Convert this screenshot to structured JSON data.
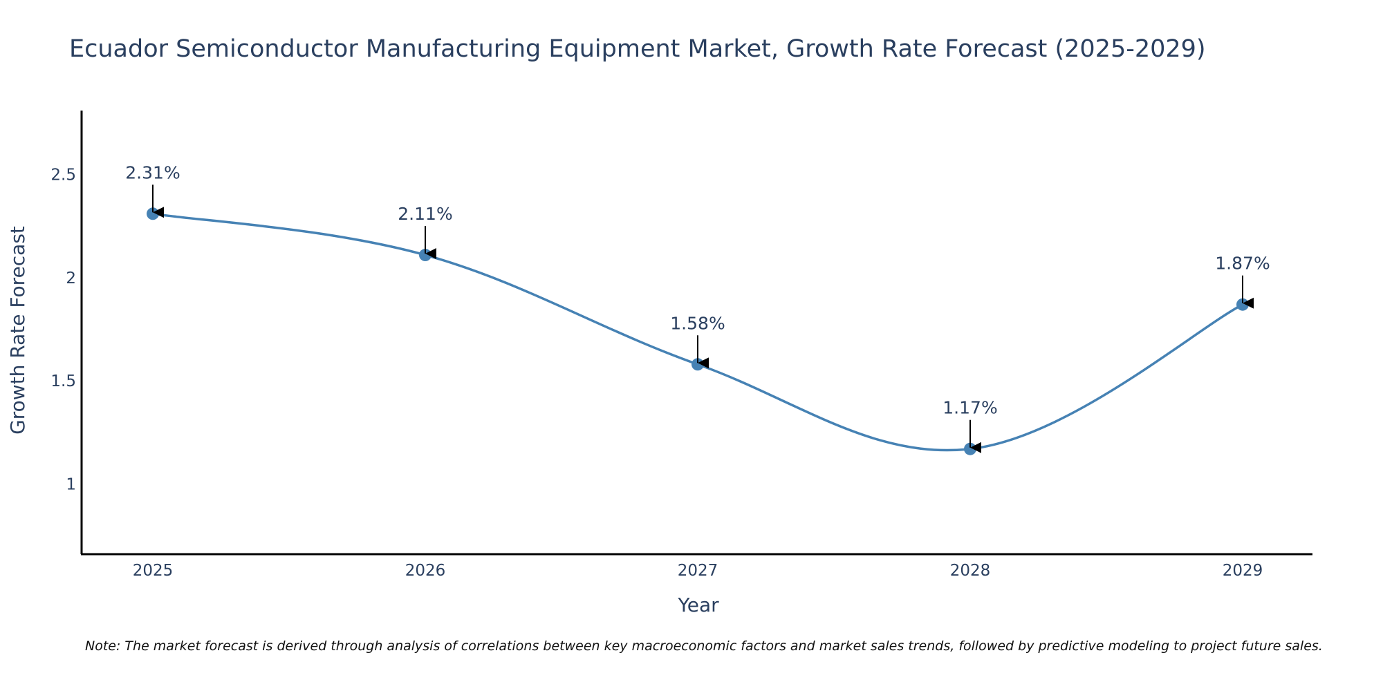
{
  "chart_data": {
    "type": "line",
    "title": "Ecuador Semiconductor Manufacturing Equipment Market, Growth Rate Forecast (2025-2029)",
    "xlabel": "Year",
    "ylabel": "Growth Rate Forecast",
    "categories": [
      "2025",
      "2026",
      "2027",
      "2028",
      "2029"
    ],
    "values": [
      2.31,
      2.11,
      1.58,
      1.17,
      1.87
    ],
    "data_labels": [
      "2.31%",
      "2.11%",
      "1.58%",
      "1.17%",
      "1.87%"
    ],
    "ylim": [
      0.66,
      2.81
    ],
    "yticks": [
      1,
      1.5,
      2,
      2.5
    ],
    "ytick_labels": [
      "1",
      "1.5",
      "2",
      "2.5"
    ],
    "grid": false,
    "line_shape": "spline",
    "series_color": "#4682b4",
    "note": "Note: The market forecast is derived through analysis of correlations between key macroeconomic factors and market sales trends, followed by predictive modeling to project future sales."
  }
}
